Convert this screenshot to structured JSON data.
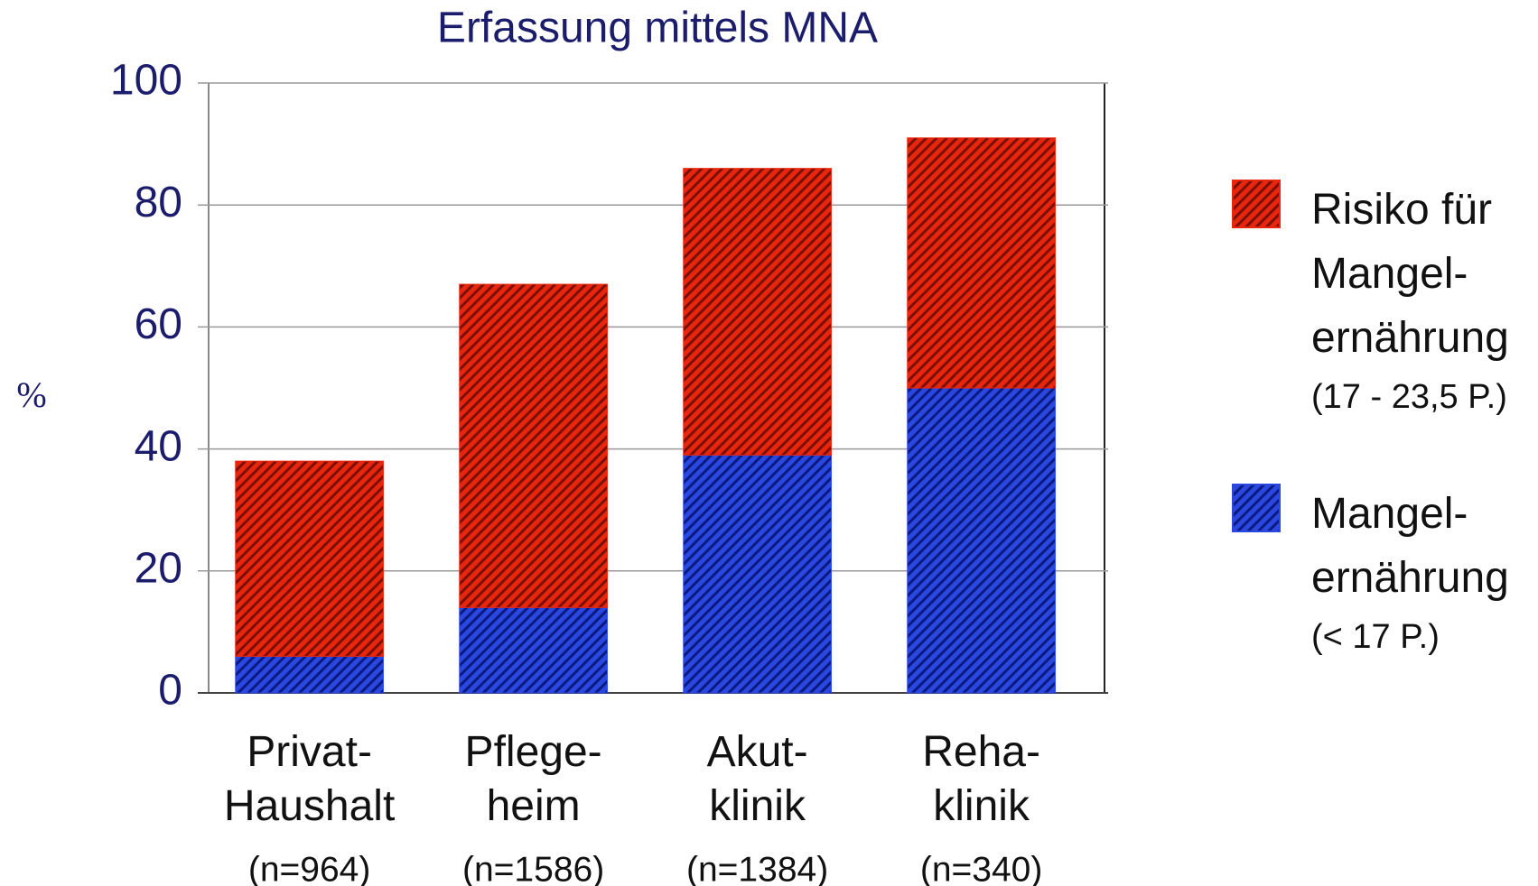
{
  "chart_data": {
    "type": "stacked_bar",
    "title": "Erfassung mittels MNA",
    "y_label": "%",
    "categories": [
      "Privat-\nHaushalt",
      "Pflege-\nheim",
      "Akut-\nklinik",
      "Reha-\nklinik"
    ],
    "category_notes": [
      "(n=964)",
      "(n=1586)",
      "(n=1384)",
      "(n=340)"
    ],
    "series": [
      {
        "name": "Mangel-\nernährung",
        "note": "(< 17 P.)",
        "color": "#2a48e0",
        "values": [
          6,
          14,
          39,
          50
        ]
      },
      {
        "name": "Risiko für\nMangel-\nernährung",
        "note": "(17 - 23,5 P.)",
        "color": "#e8260e",
        "values": [
          32,
          53,
          47,
          41
        ]
      }
    ],
    "ylim": [
      0,
      100
    ],
    "yticks": [
      0,
      20,
      40,
      60,
      80,
      100
    ],
    "grid": true
  }
}
